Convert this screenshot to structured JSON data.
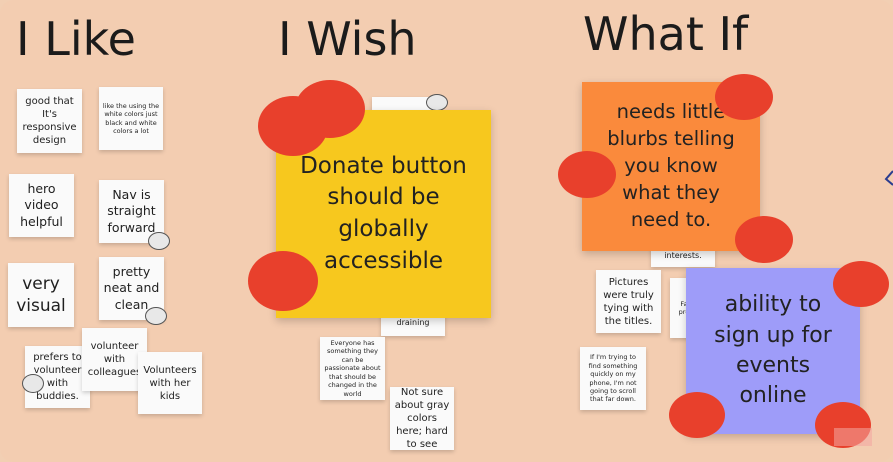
{
  "columns": {
    "like": "I Like",
    "wish": "I Wish",
    "whatif": "What If"
  },
  "like_notes": {
    "responsive": "good that It's responsive design",
    "white_colors": "like the using the white colors just black and white colors a lot",
    "hero_video": "hero video helpful",
    "nav": "Nav is straight forward",
    "visual": "very visual",
    "neat": "pretty neat and clean",
    "volunteer_buddies": "prefers to volunteer with buddies.",
    "volunteer_colleagues": "volunteer with colleagues",
    "volunteer_kids": "Volunteers with her kids"
  },
  "wish_notes": {
    "donate": "Donate button should be globally accessible",
    "draining": "draining",
    "passionate": "Everyone has something they can be passionate about that should be changed in the world",
    "gray": "Not sure about gray colors here; hard to see"
  },
  "whatif_notes": {
    "blurbs": "needs little blurbs telling you know what they need to.",
    "interests": "interests.",
    "pictures": "Pictures were truly tying with the titles.",
    "pro_fragment": "Fa pro",
    "find_quickly": "If I'm trying to find something quickly on my phone, I'm not going to scroll that far down.",
    "signup": "ability to sign up for events online"
  },
  "colors": {
    "board": "#f3cdb1",
    "yellow": "#f7c81e",
    "orange": "#fa8a3c",
    "purple": "#9e9cf9",
    "dot": "#e8402c"
  }
}
